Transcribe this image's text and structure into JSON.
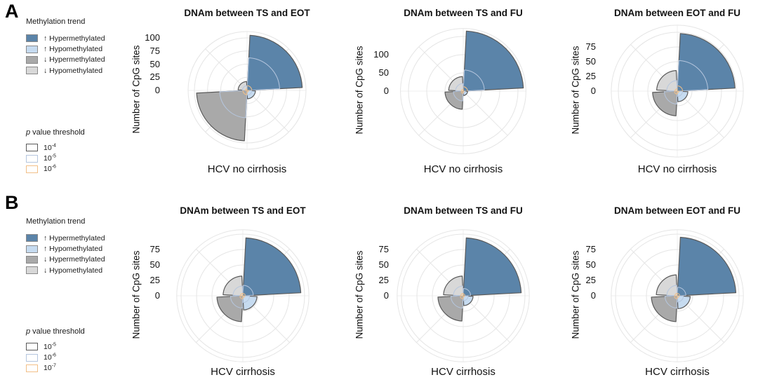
{
  "figure": {
    "background": "#ffffff"
  },
  "panels": [
    {
      "label": "A",
      "legend": {
        "trend_title": "Methylation trend",
        "trend_items": [
          {
            "label": "↑ Hypermethylated",
            "color": "#5b84a9"
          },
          {
            "label": "↑ Hypomethylated",
            "color": "#c6dbf0"
          },
          {
            "label": "↓ Hypermethylated",
            "color": "#a9a9a9"
          },
          {
            "label": "↓ Hypomethylated",
            "color": "#d8d8d8"
          }
        ],
        "p_title_italic": "p",
        "p_title_rest": " value threshold",
        "p_items": [
          {
            "base": "10",
            "exp": "-4",
            "border": "#5a5a5a"
          },
          {
            "base": "10",
            "exp": "-5",
            "border": "#b5c6de"
          },
          {
            "base": "10",
            "exp": "-6",
            "border": "#f2c088"
          }
        ]
      }
    },
    {
      "label": "B",
      "legend": {
        "trend_title": "Methylation trend",
        "trend_items": [
          {
            "label": "↑ Hypermethylated",
            "color": "#5b84a9"
          },
          {
            "label": "↑ Hypomethylated",
            "color": "#c6dbf0"
          },
          {
            "label": "↓ Hypermethylated",
            "color": "#a9a9a9"
          },
          {
            "label": "↓ Hypomethylated",
            "color": "#d8d8d8"
          }
        ],
        "p_title_italic": "p",
        "p_title_rest": " value threshold",
        "p_items": [
          {
            "base": "10",
            "exp": "-5",
            "border": "#5a5a5a"
          },
          {
            "base": "10",
            "exp": "-6",
            "border": "#b5c6de"
          },
          {
            "base": "10",
            "exp": "-7",
            "border": "#f2c088"
          }
        ]
      }
    }
  ],
  "chart_data": [
    {
      "type": "polar_bar_coxcomb",
      "panel": "A",
      "title": "DNAm between TS and EOT",
      "caption": "HCV no cirrhosis",
      "ylabel": "Number of CpG sites",
      "ticks": [
        0,
        25,
        50,
        75,
        100
      ],
      "rlim": [
        0,
        112
      ],
      "grid": true,
      "thresholds": [
        "1e-4",
        "1e-5",
        "1e-6"
      ],
      "series": [
        {
          "trend": "↑ Hypermethylated",
          "quadrant": "top-right",
          "values": [
            105,
            62,
            9
          ]
        },
        {
          "trend": "↑ Hypomethylated",
          "quadrant": "bottom-right",
          "values": [
            16,
            9,
            3
          ]
        },
        {
          "trend": "↓ Hypermethylated",
          "quadrant": "bottom-left",
          "values": [
            96,
            52,
            8
          ]
        },
        {
          "trend": "↓ Hypomethylated",
          "quadrant": "top-left",
          "values": [
            17,
            9,
            3
          ]
        }
      ]
    },
    {
      "type": "polar_bar_coxcomb",
      "panel": "A",
      "title": "DNAm between TS and FU",
      "caption": "HCV no cirrhosis",
      "ylabel": "Number of CpG sites",
      "ticks": [
        0,
        50,
        100
      ],
      "rlim": [
        0,
        172
      ],
      "grid": true,
      "thresholds": [
        "1e-4",
        "1e-5",
        "1e-6"
      ],
      "series": [
        {
          "trend": "↑ Hypermethylated",
          "quadrant": "top-right",
          "values": [
            165,
            58,
            12
          ]
        },
        {
          "trend": "↑ Hypomethylated",
          "quadrant": "bottom-right",
          "values": [
            12,
            6,
            2
          ]
        },
        {
          "trend": "↓ Hypermethylated",
          "quadrant": "bottom-left",
          "values": [
            50,
            27,
            6
          ]
        },
        {
          "trend": "↓ Hypomethylated",
          "quadrant": "top-left",
          "values": [
            40,
            21,
            5
          ]
        }
      ]
    },
    {
      "type": "polar_bar_coxcomb",
      "panel": "A",
      "title": "DNAm between EOT and FU",
      "caption": "HCV no cirrhosis",
      "ylabel": "Number of CpG sites",
      "ticks": [
        0,
        25,
        50,
        75
      ],
      "rlim": [
        0,
        112
      ],
      "grid": true,
      "thresholds": [
        "1e-4",
        "1e-5",
        "1e-6"
      ],
      "series": [
        {
          "trend": "↑ Hypermethylated",
          "quadrant": "top-right",
          "values": [
            98,
            52,
            9
          ]
        },
        {
          "trend": "↑ Hypomethylated",
          "quadrant": "bottom-right",
          "values": [
            18,
            9,
            3
          ]
        },
        {
          "trend": "↓ Hypermethylated",
          "quadrant": "bottom-left",
          "values": [
            42,
            22,
            5
          ]
        },
        {
          "trend": "↓ Hypomethylated",
          "quadrant": "top-left",
          "values": [
            35,
            18,
            4
          ]
        }
      ]
    },
    {
      "type": "polar_bar_coxcomb",
      "panel": "B",
      "title": "DNAm between TS and EOT",
      "caption": "HCV cirrhosis",
      "ylabel": "Number of CpG sites",
      "ticks": [
        0,
        25,
        50,
        75
      ],
      "rlim": [
        0,
        107
      ],
      "grid": true,
      "thresholds": [
        "1e-5",
        "1e-6",
        "1e-7"
      ],
      "series": [
        {
          "trend": "↑ Hypermethylated",
          "quadrant": "top-right",
          "values": [
            94,
            17,
            4
          ]
        },
        {
          "trend": "↑ Hypomethylated",
          "quadrant": "bottom-right",
          "values": [
            23,
            11,
            3
          ]
        },
        {
          "trend": "↓ Hypermethylated",
          "quadrant": "bottom-left",
          "values": [
            42,
            20,
            5
          ]
        },
        {
          "trend": "↓ Hypomethylated",
          "quadrant": "top-left",
          "values": [
            32,
            16,
            4
          ]
        }
      ]
    },
    {
      "type": "polar_bar_coxcomb",
      "panel": "B",
      "title": "DNAm between TS and FU",
      "caption": "HCV cirrhosis",
      "ylabel": "Number of CpG sites",
      "ticks": [
        0,
        25,
        50,
        75
      ],
      "rlim": [
        0,
        107
      ],
      "grid": true,
      "thresholds": [
        "1e-5",
        "1e-6",
        "1e-7"
      ],
      "series": [
        {
          "trend": "↑ Hypermethylated",
          "quadrant": "top-right",
          "values": [
            94,
            12,
            3
          ]
        },
        {
          "trend": "↑ Hypomethylated",
          "quadrant": "bottom-right",
          "values": [
            16,
            8,
            2
          ]
        },
        {
          "trend": "↓ Hypermethylated",
          "quadrant": "bottom-left",
          "values": [
            41,
            20,
            5
          ]
        },
        {
          "trend": "↓ Hypomethylated",
          "quadrant": "top-left",
          "values": [
            32,
            16,
            4
          ]
        }
      ]
    },
    {
      "type": "polar_bar_coxcomb",
      "panel": "B",
      "title": "DNAm between EOT and FU",
      "caption": "HCV cirrhosis",
      "ylabel": "Number of CpG sites",
      "ticks": [
        0,
        25,
        50,
        75
      ],
      "rlim": [
        0,
        107
      ],
      "grid": true,
      "thresholds": [
        "1e-5",
        "1e-6",
        "1e-7"
      ],
      "series": [
        {
          "trend": "↑ Hypermethylated",
          "quadrant": "top-right",
          "values": [
            95,
            14,
            4
          ]
        },
        {
          "trend": "↑ Hypomethylated",
          "quadrant": "bottom-right",
          "values": [
            21,
            10,
            3
          ]
        },
        {
          "trend": "↓ Hypermethylated",
          "quadrant": "bottom-left",
          "values": [
            42,
            20,
            5
          ]
        },
        {
          "trend": "↓ Hypomethylated",
          "quadrant": "top-left",
          "values": [
            34,
            17,
            4
          ]
        }
      ]
    }
  ]
}
